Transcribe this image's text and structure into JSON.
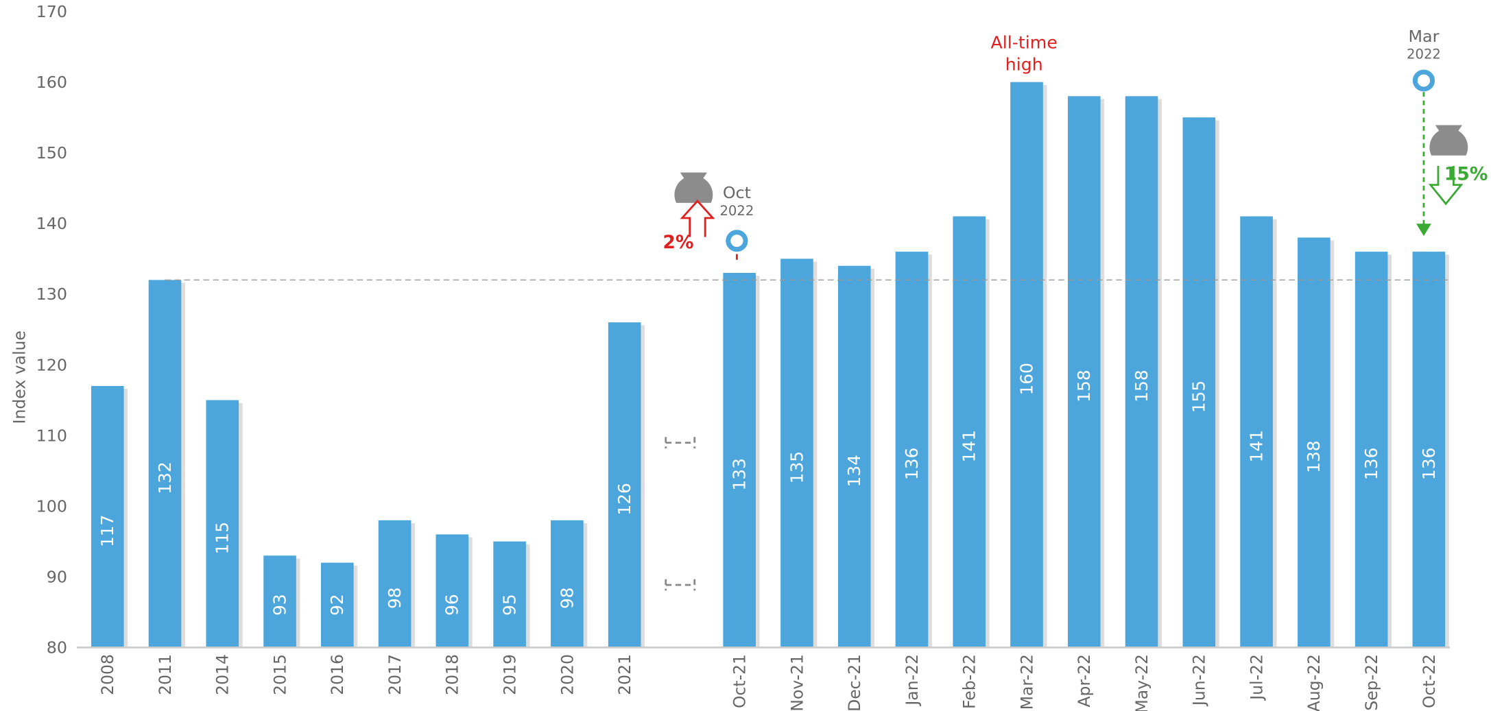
{
  "chart_data": {
    "type": "bar",
    "y_label": "Index value",
    "categories": [
      "2008",
      "2011",
      "2014",
      "2015",
      "2016",
      "2017",
      "2018",
      "2019",
      "2020",
      "2021",
      null,
      "Oct-21",
      "Nov-21",
      "Dec-21",
      "Jan-22",
      "Feb-22",
      "Mar-22",
      "Apr-22",
      "May-22",
      "Jun-22",
      "Jul-22",
      "Aug-22",
      "Sep-22",
      "Oct-22"
    ],
    "values": [
      117,
      132,
      115,
      93,
      92,
      98,
      96,
      95,
      98,
      126,
      null,
      133,
      135,
      134,
      136,
      141,
      160,
      158,
      158,
      155,
      141,
      138,
      136,
      136
    ],
    "color": "#4ca6dc",
    "ylim": [
      80,
      170
    ],
    "yticks": [
      80,
      90,
      100,
      110,
      120,
      130,
      140,
      150,
      160,
      170
    ],
    "reference_line": 132,
    "annotations": [
      "All-time",
      "high",
      "Oct",
      "2022",
      "2%",
      "Mar",
      "2022",
      "15%"
    ]
  }
}
